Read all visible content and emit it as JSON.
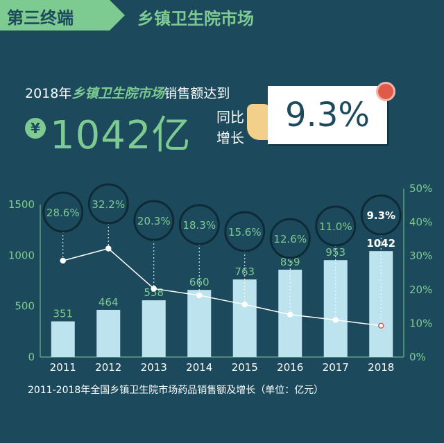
{
  "header": {
    "tag": "第三终端",
    "title": "乡镇卫生院市场"
  },
  "headline": {
    "prefix": "2018年",
    "highlight": "乡镇卫生院市场",
    "suffix": "销售额达到",
    "currency": "¥",
    "amount": "1042亿",
    "yoy_label_1": "同比",
    "yoy_label_2": "增长",
    "growth": "9.3%"
  },
  "caption": "2011-2018年全国乡镇卫生院市场药品销售额及增长（单位：亿元）",
  "colors": {
    "background": "#1c4a5c",
    "accent": "#7ecb92",
    "bar": "#bde3ee",
    "line": "#ffffff"
  },
  "chart_data": {
    "type": "bar",
    "categories": [
      "2011",
      "2012",
      "2013",
      "2014",
      "2015",
      "2016",
      "2017",
      "2018"
    ],
    "series": [
      {
        "values": [
          351,
          464,
          558,
          660,
          763,
          859,
          953,
          1042
        ]
      },
      {
        "values": [
          28.6,
          32.2,
          20.3,
          18.3,
          15.6,
          12.6,
          11.0,
          9.3
        ]
      }
    ],
    "bar_labels": [
      "351",
      "464",
      "558",
      "660",
      "763",
      "859",
      "953",
      "1042"
    ],
    "growth_labels": [
      "28.6%",
      "32.2%",
      "20.3%",
      "18.3%",
      "15.6%",
      "12.6%",
      "11.0%",
      "9.3%"
    ],
    "ylim": [
      0,
      1500
    ],
    "y2lim": [
      0,
      50
    ],
    "yticks": [
      "0",
      "500",
      "1000",
      "1500"
    ],
    "y2ticks": [
      "0%",
      "10%",
      "20%",
      "30%",
      "40%",
      "50%"
    ],
    "grid": false,
    "title": "",
    "xlabel": "",
    "ylabel": ""
  }
}
